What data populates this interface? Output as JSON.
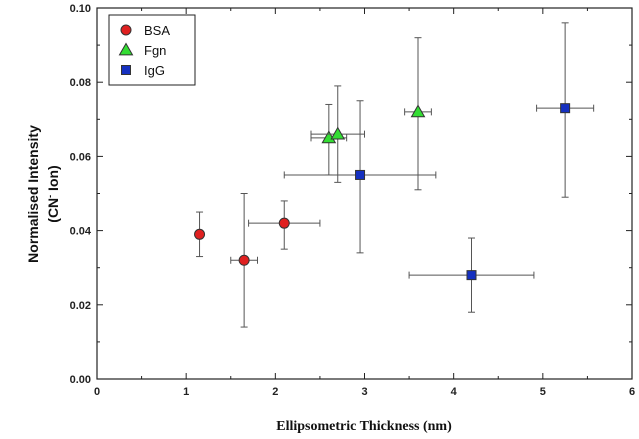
{
  "chart_data": {
    "type": "scatter",
    "xlabel": "Ellipsometric Thickness (nm)",
    "ylabel_line1": "Normalised Intensity",
    "ylabel_line2": "(CN",
    "ylabel_sup": "-",
    "ylabel_line2_end": " Ion)",
    "xlim": [
      0,
      6
    ],
    "ylim": [
      0,
      0.1
    ],
    "x_ticks": [
      "0",
      "1",
      "2",
      "3",
      "4",
      "5",
      "6"
    ],
    "y_ticks": [
      "0.00",
      "0.02",
      "0.04",
      "0.06",
      "0.08",
      "0.10"
    ],
    "legend_position": "top-left",
    "grid": false,
    "series": [
      {
        "name": "BSA",
        "marker": "circle",
        "color": "#e02020",
        "points": [
          {
            "x": 1.15,
            "y": 0.039,
            "xerr": 0.0,
            "yerr_low": 0.033,
            "yerr_high": 0.045
          },
          {
            "x": 1.65,
            "y": 0.032,
            "xerr": 0.15,
            "yerr_low": 0.014,
            "yerr_high": 0.05
          },
          {
            "x": 2.1,
            "y": 0.042,
            "xerr": 0.4,
            "yerr_low": 0.035,
            "yerr_high": 0.048
          }
        ]
      },
      {
        "name": "Fgn",
        "marker": "triangle",
        "color": "#33dd33",
        "points": [
          {
            "x": 2.6,
            "y": 0.065,
            "xerr": 0.2,
            "yerr_low": 0.055,
            "yerr_high": 0.074
          },
          {
            "x": 2.7,
            "y": 0.066,
            "xerr": 0.3,
            "yerr_low": 0.053,
            "yerr_high": 0.079
          },
          {
            "x": 3.6,
            "y": 0.072,
            "xerr": 0.15,
            "yerr_low": 0.051,
            "yerr_high": 0.092
          }
        ]
      },
      {
        "name": "IgG",
        "marker": "square",
        "color": "#1530c0",
        "points": [
          {
            "x": 2.95,
            "y": 0.055,
            "xerr": 0.85,
            "yerr_low": 0.034,
            "yerr_high": 0.075
          },
          {
            "x": 4.2,
            "y": 0.028,
            "xerr": 0.7,
            "yerr_low": 0.018,
            "yerr_high": 0.038
          },
          {
            "x": 5.25,
            "y": 0.073,
            "xerr": 0.32,
            "yerr_low": 0.049,
            "yerr_high": 0.096
          }
        ]
      }
    ]
  }
}
